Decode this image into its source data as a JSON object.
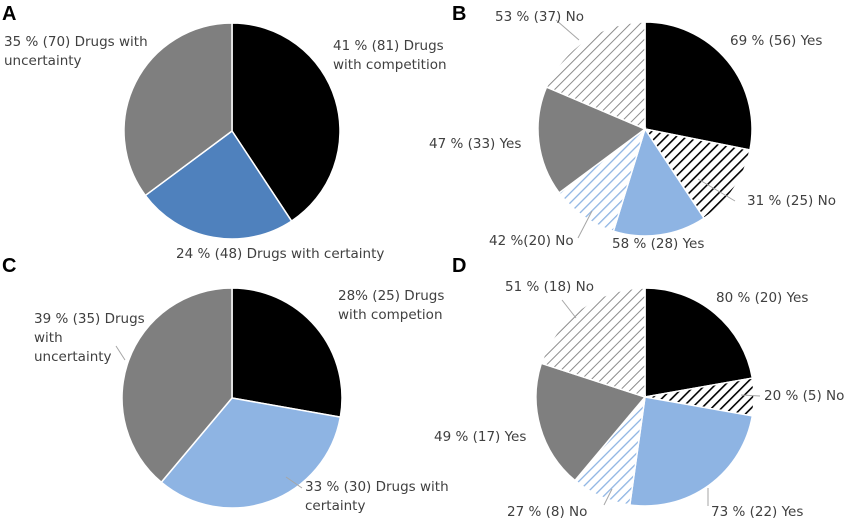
{
  "figure": {
    "panel_letters": [
      "A",
      "B",
      "C",
      "D"
    ]
  },
  "colors": {
    "black": "#000000",
    "gray": "#7f7f7f",
    "blue_dark": "#4f81bd",
    "blue_light": "#8eb4e3",
    "stroke": "#ffffff"
  },
  "chart_data": [
    {
      "panel": "A",
      "type": "pie",
      "slices": [
        {
          "label_lines": [
            "41 % (81) Drugs",
            "with competition"
          ],
          "value": 81,
          "fill": "black"
        },
        {
          "label_lines": [
            "24 % (48) Drugs with certainty"
          ],
          "value": 48,
          "fill": "blue_dark"
        },
        {
          "label_lines": [
            "35 % (70) Drugs with",
            "uncertainty"
          ],
          "value": 70,
          "fill": "gray"
        }
      ]
    },
    {
      "panel": "B",
      "type": "pie",
      "slices": [
        {
          "label_lines": [
            "69 % (56) Yes"
          ],
          "value": 56,
          "fill": "black"
        },
        {
          "label_lines": [
            "31 % (25) No"
          ],
          "value": 25,
          "fill": "hatch-black"
        },
        {
          "label_lines": [
            "58 % (28) Yes"
          ],
          "value": 28,
          "fill": "blue_light"
        },
        {
          "label_lines": [
            "42 %(20) No"
          ],
          "value": 20,
          "fill": "hatch-blue"
        },
        {
          "label_lines": [
            "47 % (33) Yes"
          ],
          "value": 33,
          "fill": "gray"
        },
        {
          "label_lines": [
            "53 % (37) No"
          ],
          "value": 37,
          "fill": "hatch-gray"
        }
      ]
    },
    {
      "panel": "C",
      "type": "pie",
      "slices": [
        {
          "label_lines": [
            "28% (25) Drugs",
            "with competion"
          ],
          "value": 25,
          "fill": "black"
        },
        {
          "label_lines": [
            "33 % (30) Drugs with",
            "certainty"
          ],
          "value": 30,
          "fill": "blue_light"
        },
        {
          "label_lines": [
            "39 % (35) Drugs",
            "with",
            "uncertainty"
          ],
          "value": 35,
          "fill": "gray"
        }
      ]
    },
    {
      "panel": "D",
      "type": "pie",
      "slices": [
        {
          "label_lines": [
            "80 % (20) Yes"
          ],
          "value": 20,
          "fill": "black"
        },
        {
          "label_lines": [
            "20 % (5) No"
          ],
          "value": 5,
          "fill": "hatch-black"
        },
        {
          "label_lines": [
            "73 % (22) Yes"
          ],
          "value": 22,
          "fill": "blue_light"
        },
        {
          "label_lines": [
            "27 % (8) No"
          ],
          "value": 8,
          "fill": "hatch-blue"
        },
        {
          "label_lines": [
            "49 % (17) Yes"
          ],
          "value": 17,
          "fill": "gray"
        },
        {
          "label_lines": [
            "51 % (18) No"
          ],
          "value": 18,
          "fill": "hatch-gray"
        }
      ]
    }
  ]
}
